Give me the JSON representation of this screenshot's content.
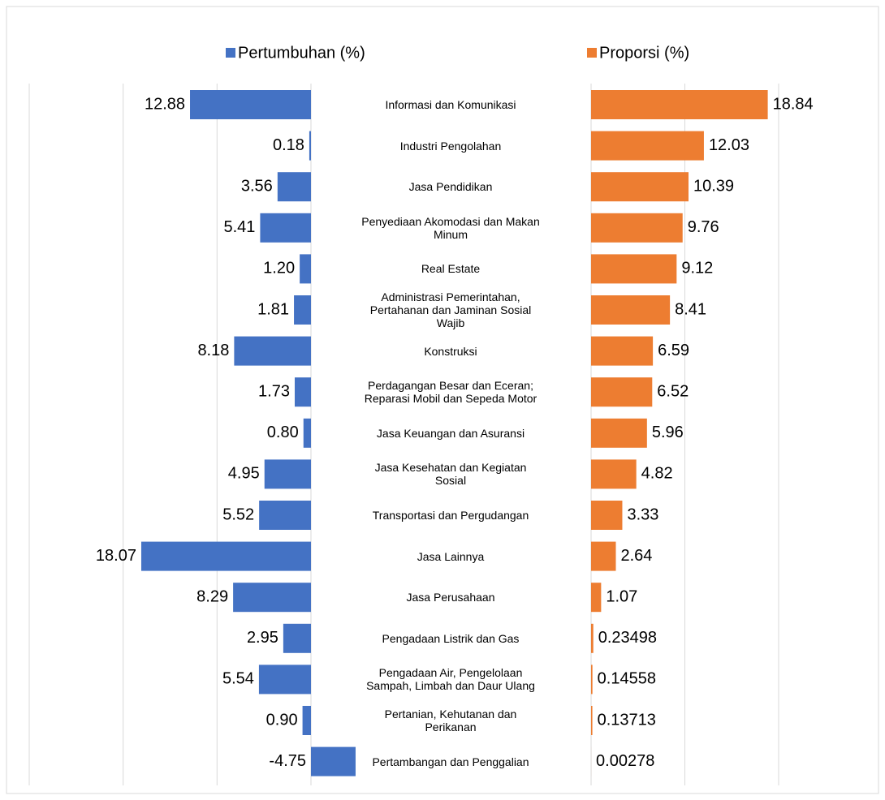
{
  "chart_data": {
    "type": "bar",
    "orientation": "horizontal",
    "categories": [
      "Informasi dan Komunikasi",
      "Industri Pengolahan",
      "Jasa Pendidikan",
      "Penyediaan Akomodasi dan Makan Minum",
      "Real Estate",
      "Administrasi Pemerintahan, Pertahanan dan Jaminan Sosial Wajib",
      "Konstruksi",
      "Perdagangan Besar dan Eceran; Reparasi Mobil dan Sepeda Motor",
      "Jasa Keuangan dan Asuransi",
      "Jasa Kesehatan dan Kegiatan Sosial",
      "Transportasi dan Pergudangan",
      "Jasa Lainnya",
      "Jasa Perusahaan",
      "Pengadaan Listrik dan Gas",
      "Pengadaan Air, Pengelolaan Sampah, Limbah dan Daur Ulang",
      "Pertanian, Kehutanan dan Perikanan",
      "Pertambangan dan Penggalian"
    ],
    "series": [
      {
        "name": "Pertumbuhan (%)",
        "color": "#4472c4",
        "axis": "x",
        "values": [
          12.88,
          0.18,
          3.56,
          5.41,
          1.2,
          1.81,
          8.18,
          1.73,
          0.8,
          4.95,
          5.52,
          18.07,
          8.29,
          2.95,
          5.54,
          0.9,
          -4.75
        ],
        "value_labels": [
          "12.88",
          "0.18",
          "3.56",
          "5.41",
          "1.20",
          "1.81",
          "8.18",
          "1.73",
          "0.80",
          "4.95",
          "5.52",
          "18.07",
          "8.29",
          "2.95",
          "5.54",
          "0.90",
          "-4.75"
        ]
      },
      {
        "name": "Proporsi (%)",
        "color": "#ed7d31",
        "axis": "x2",
        "values": [
          18.84,
          12.03,
          10.39,
          9.76,
          9.12,
          8.41,
          6.59,
          6.52,
          5.96,
          4.82,
          3.33,
          2.64,
          1.07,
          0.23498,
          0.14558,
          0.13713,
          0.00278
        ]
      }
    ],
    "xlim": [
      30,
      0
    ],
    "xticks": [
      30,
      20,
      10,
      0
    ],
    "x2lim": [
      0,
      20
    ],
    "x2ticks": [
      0,
      10,
      20
    ],
    "grid": true
  }
}
